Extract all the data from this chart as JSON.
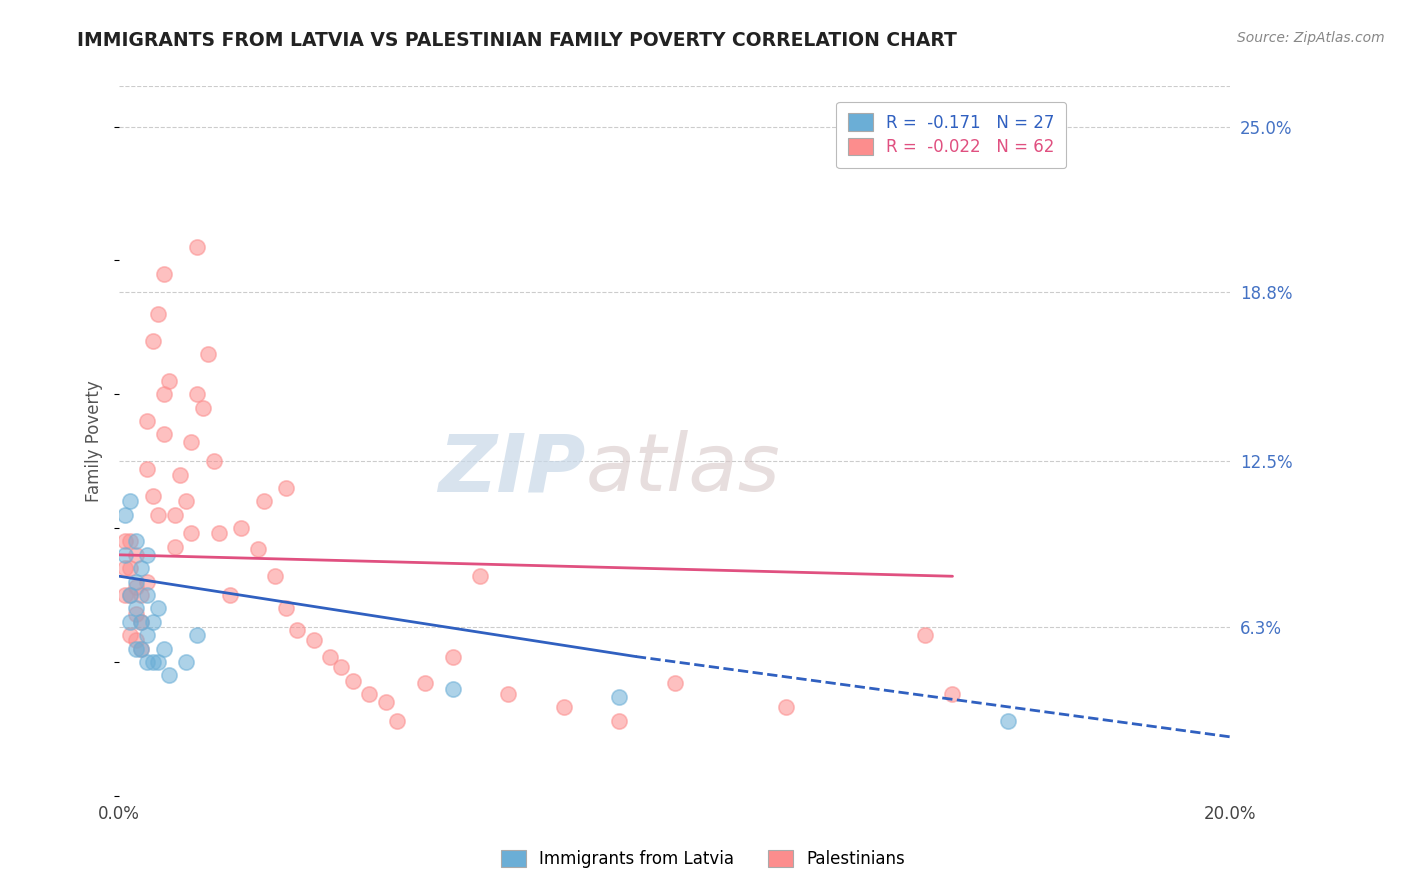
{
  "title": "IMMIGRANTS FROM LATVIA VS PALESTINIAN FAMILY POVERTY CORRELATION CHART",
  "source_text": "Source: ZipAtlas.com",
  "ylabel": "Family Poverty",
  "xlim": [
    0.0,
    0.2
  ],
  "ylim": [
    0.0,
    0.265
  ],
  "yticks_right": [
    0.063,
    0.125,
    0.188,
    0.25
  ],
  "yticklabels_right": [
    "6.3%",
    "12.5%",
    "18.8%",
    "25.0%"
  ],
  "latvia_color": "#6baed6",
  "palestine_color": "#fc8d8d",
  "latvia_line_color": "#3060c0",
  "palestine_line_color": "#e05080",
  "latvia_R": -0.171,
  "latvia_N": 27,
  "palestine_R": -0.022,
  "palestine_N": 62,
  "watermark_zip": "ZIP",
  "watermark_atlas": "atlas",
  "background_color": "#ffffff",
  "grid_color": "#cccccc",
  "latvia_scatter_x": [
    0.001,
    0.001,
    0.002,
    0.002,
    0.002,
    0.003,
    0.003,
    0.003,
    0.003,
    0.004,
    0.004,
    0.004,
    0.005,
    0.005,
    0.005,
    0.005,
    0.006,
    0.006,
    0.007,
    0.007,
    0.008,
    0.009,
    0.012,
    0.014,
    0.06,
    0.09,
    0.16
  ],
  "latvia_scatter_y": [
    0.09,
    0.105,
    0.065,
    0.075,
    0.11,
    0.055,
    0.07,
    0.08,
    0.095,
    0.055,
    0.065,
    0.085,
    0.05,
    0.06,
    0.075,
    0.09,
    0.05,
    0.065,
    0.05,
    0.07,
    0.055,
    0.045,
    0.05,
    0.06,
    0.04,
    0.037,
    0.028
  ],
  "palestine_scatter_x": [
    0.001,
    0.001,
    0.001,
    0.002,
    0.002,
    0.002,
    0.002,
    0.003,
    0.003,
    0.003,
    0.003,
    0.004,
    0.004,
    0.004,
    0.005,
    0.005,
    0.005,
    0.006,
    0.006,
    0.007,
    0.007,
    0.008,
    0.008,
    0.008,
    0.009,
    0.01,
    0.01,
    0.011,
    0.012,
    0.013,
    0.013,
    0.014,
    0.014,
    0.015,
    0.016,
    0.017,
    0.018,
    0.02,
    0.022,
    0.025,
    0.026,
    0.028,
    0.03,
    0.03,
    0.032,
    0.035,
    0.038,
    0.04,
    0.042,
    0.045,
    0.048,
    0.05,
    0.055,
    0.06,
    0.065,
    0.07,
    0.08,
    0.09,
    0.1,
    0.12,
    0.145,
    0.15
  ],
  "palestine_scatter_y": [
    0.075,
    0.085,
    0.095,
    0.06,
    0.075,
    0.085,
    0.095,
    0.058,
    0.068,
    0.078,
    0.09,
    0.055,
    0.065,
    0.075,
    0.08,
    0.122,
    0.14,
    0.112,
    0.17,
    0.105,
    0.18,
    0.195,
    0.135,
    0.15,
    0.155,
    0.093,
    0.105,
    0.12,
    0.11,
    0.098,
    0.132,
    0.205,
    0.15,
    0.145,
    0.165,
    0.125,
    0.098,
    0.075,
    0.1,
    0.092,
    0.11,
    0.082,
    0.07,
    0.115,
    0.062,
    0.058,
    0.052,
    0.048,
    0.043,
    0.038,
    0.035,
    0.028,
    0.042,
    0.052,
    0.082,
    0.038,
    0.033,
    0.028,
    0.042,
    0.033,
    0.06,
    0.038
  ],
  "latvia_trend_x0": 0.0,
  "latvia_trend_x_solid_end": 0.093,
  "latvia_trend_x_dash_end": 0.2,
  "latvia_trend_y0": 0.082,
  "latvia_trend_y_solid_end": 0.052,
  "latvia_trend_y_dash_end": 0.022,
  "palestine_trend_x0": 0.0,
  "palestine_trend_x_end": 0.15,
  "palestine_trend_y0": 0.09,
  "palestine_trend_y_end": 0.082
}
